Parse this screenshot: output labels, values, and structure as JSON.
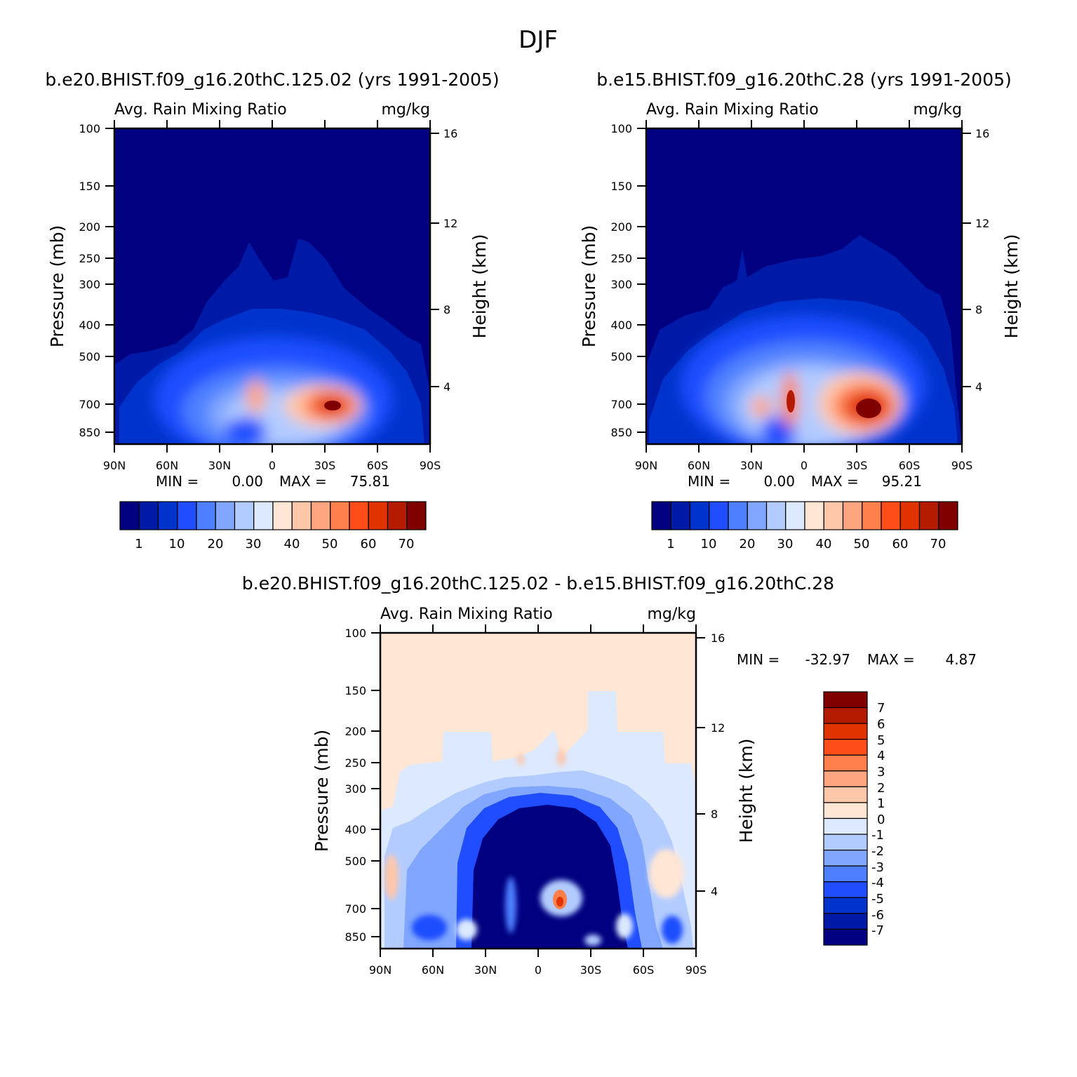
{
  "title": "DJF",
  "colors": {
    "base": [
      "#000080",
      "#001aa8",
      "#0033cc",
      "#1f4dff",
      "#4d7fff",
      "#80a6ff",
      "#b3ccff",
      "#dce9ff",
      "#ffe6d5",
      "#ffc7aa",
      "#ffa680",
      "#ff7f4d",
      "#ff4d1a",
      "#e03300",
      "#b31a00",
      "#800000"
    ],
    "diff": [
      "#000080",
      "#001aa8",
      "#0033cc",
      "#1f4dff",
      "#4d7fff",
      "#80a6ff",
      "#b3ccff",
      "#dce9ff",
      "#ffe6d5",
      "#ffc7aa",
      "#ffa680",
      "#ff7f4d",
      "#ff4d1a",
      "#e03300",
      "#b31a00",
      "#800000"
    ]
  },
  "chart_data": [
    {
      "type": "heatmap",
      "title": "b.e20.BHIST.f09_g16.20thC.125.02 (yrs 1991-2005)",
      "subtitle_left": "Avg. Rain Mixing Ratio",
      "subtitle_right": "mg/kg",
      "ylabel": "Pressure (mb)",
      "y2label": "Height (km)",
      "x_ticks": [
        "90N",
        "60N",
        "30N",
        "0",
        "30S",
        "60S",
        "90S"
      ],
      "y_ticks": [
        "100",
        "150",
        "200",
        "250",
        "300",
        "400",
        "500",
        "700",
        "850"
      ],
      "y2_ticks": [
        "16",
        "12",
        "8",
        "4"
      ],
      "min_label": "MIN =",
      "min_value": "0.00",
      "max_label": "MAX =",
      "max_value": "75.81",
      "colorbar_labels": [
        "1",
        "10",
        "20",
        "30",
        "40",
        "50",
        "60",
        "70"
      ],
      "peaks": [
        {
          "lat": -30,
          "pressure": 700,
          "value": 75.81
        },
        {
          "lat": 8,
          "pressure": 700,
          "value": 45
        },
        {
          "lat": -15,
          "pressure": 700,
          "value": 48
        }
      ]
    },
    {
      "type": "heatmap",
      "title": "b.e15.BHIST.f09_g16.20thC.28 (yrs 1991-2005)",
      "subtitle_left": "Avg. Rain Mixing Ratio",
      "subtitle_right": "mg/kg",
      "ylabel": "Pressure (mb)",
      "y2label": "Height (km)",
      "x_ticks": [
        "90N",
        "60N",
        "30N",
        "0",
        "30S",
        "60S",
        "90S"
      ],
      "y_ticks": [
        "100",
        "150",
        "200",
        "250",
        "300",
        "400",
        "500",
        "700",
        "850"
      ],
      "y2_ticks": [
        "16",
        "12",
        "8",
        "4"
      ],
      "min_label": "MIN =",
      "min_value": "0.00",
      "max_label": "MAX =",
      "max_value": "95.21",
      "colorbar_labels": [
        "1",
        "10",
        "20",
        "30",
        "40",
        "50",
        "60",
        "70"
      ],
      "peaks": [
        {
          "lat": -35,
          "pressure": 700,
          "value": 95.21
        },
        {
          "lat": 7,
          "pressure": 700,
          "value": 80
        }
      ]
    },
    {
      "type": "heatmap",
      "title": "b.e20.BHIST.f09_g16.20thC.125.02 - b.e15.BHIST.f09_g16.20thC.28",
      "subtitle_left": "Avg. Rain Mixing Ratio",
      "subtitle_right": "mg/kg",
      "ylabel": "Pressure (mb)",
      "y2label": "Height (km)",
      "x_ticks": [
        "90N",
        "60N",
        "30N",
        "0",
        "30S",
        "60S",
        "90S"
      ],
      "y_ticks": [
        "100",
        "150",
        "200",
        "250",
        "300",
        "400",
        "500",
        "700",
        "850"
      ],
      "y2_ticks": [
        "16",
        "12",
        "8",
        "4"
      ],
      "min_label": "MIN =",
      "min_value": "-32.97",
      "max_label": "MAX =",
      "max_value": "4.87",
      "colorbar_labels": [
        "7",
        "6",
        "5",
        "4",
        "3",
        "2",
        "1",
        "0",
        "-1",
        "-2",
        "-3",
        "-4",
        "-5",
        "-6",
        "-7"
      ]
    }
  ]
}
